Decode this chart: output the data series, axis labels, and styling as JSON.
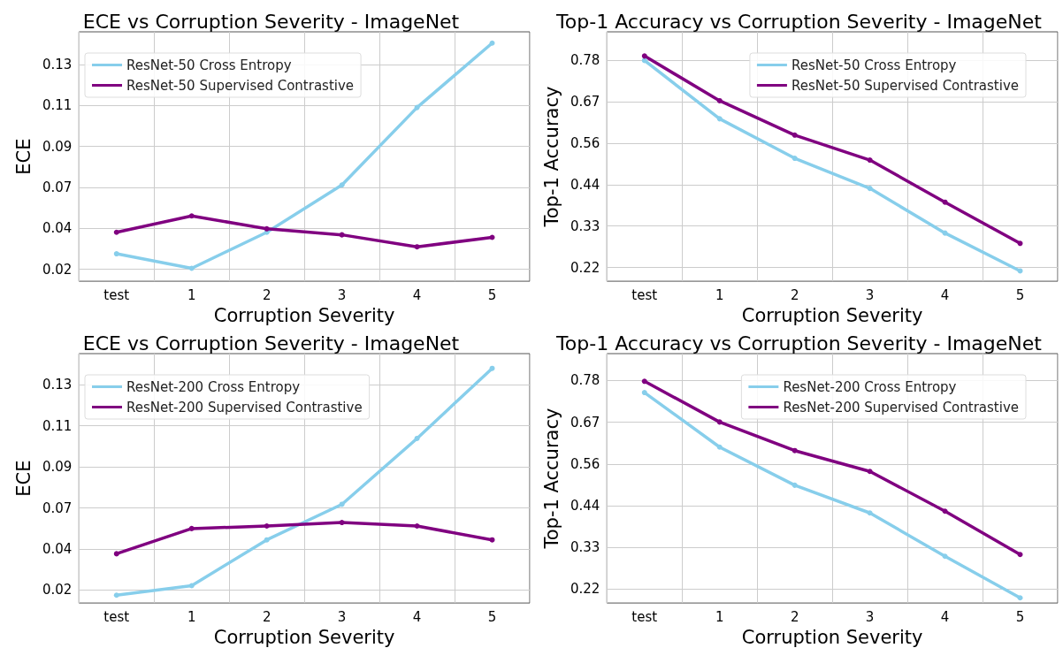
{
  "chart_data": [
    {
      "type": "line",
      "title": "ECE vs Corruption Severity - ImageNet",
      "xlabel": "Corruption Severity",
      "ylabel": "ECE",
      "categories": [
        "test",
        "1",
        "2",
        "3",
        "4",
        "5"
      ],
      "ylim": [
        0.0134,
        0.1505
      ],
      "yticks": [
        {
          "value": 0.02,
          "label": "0.02"
        },
        {
          "value": 0.0425,
          "label": "0.04"
        },
        {
          "value": 0.065,
          "label": "0.07"
        },
        {
          "value": 0.0875,
          "label": "0.09"
        },
        {
          "value": 0.11,
          "label": "0.11"
        },
        {
          "value": 0.1325,
          "label": "0.13"
        }
      ],
      "grid": true,
      "legend": "top left",
      "marker": "circle",
      "line_style": "solid",
      "series": [
        {
          "name": "ResNet-50 Cross Entropy",
          "color": "#87ceeb",
          "values": [
            0.0285,
            0.0205,
            0.0403,
            0.0663,
            0.1089,
            0.1443
          ]
        },
        {
          "name": "ResNet-50 Supervised Contrastive",
          "color": "#800080",
          "values": [
            0.0403,
            0.0493,
            0.0422,
            0.0389,
            0.0323,
            0.0375
          ]
        }
      ]
    },
    {
      "type": "line",
      "title": "Top-1 Accuracy vs Corruption Severity - ImageNet",
      "xlabel": "Corruption Severity",
      "ylabel": "Top-1 Accuracy",
      "categories": [
        "test",
        "1",
        "2",
        "3",
        "4",
        "5"
      ],
      "ylim": [
        0.183,
        0.855
      ],
      "yticks": [
        {
          "value": 0.22,
          "label": "0.22"
        },
        {
          "value": 0.3317,
          "label": "0.33"
        },
        {
          "value": 0.4433,
          "label": "0.44"
        },
        {
          "value": 0.555,
          "label": "0.56"
        },
        {
          "value": 0.6667,
          "label": "0.67"
        },
        {
          "value": 0.7783,
          "label": "0.78"
        }
      ],
      "grid": true,
      "legend": "top right",
      "marker": "circle",
      "line_style": "solid",
      "series": [
        {
          "name": "ResNet-50 Cross Entropy",
          "color": "#87ceeb",
          "values": [
            0.7777,
            0.6207,
            0.5142,
            0.4331,
            0.3127,
            0.2107
          ]
        },
        {
          "name": "ResNet-50 Supervised Contrastive",
          "color": "#800080",
          "values": [
            0.7898,
            0.6693,
            0.5767,
            0.5095,
            0.396,
            0.2849
          ]
        }
      ]
    },
    {
      "type": "line",
      "title": "ECE vs Corruption Severity - ImageNet",
      "xlabel": "Corruption Severity",
      "ylabel": "ECE",
      "categories": [
        "test",
        "1",
        "2",
        "3",
        "4",
        "5"
      ],
      "ylim": [
        0.0129,
        0.1496
      ],
      "yticks": [
        {
          "value": 0.02,
          "label": "0.02"
        },
        {
          "value": 0.0425,
          "label": "0.04"
        },
        {
          "value": 0.065,
          "label": "0.07"
        },
        {
          "value": 0.0875,
          "label": "0.09"
        },
        {
          "value": 0.11,
          "label": "0.11"
        },
        {
          "value": 0.1325,
          "label": "0.13"
        }
      ],
      "grid": true,
      "legend": "top left",
      "marker": "circle",
      "line_style": "solid",
      "series": [
        {
          "name": "ResNet-200 Cross Entropy",
          "color": "#87ceeb",
          "values": [
            0.0172,
            0.0224,
            0.0475,
            0.067,
            0.1031,
            0.1415
          ]
        },
        {
          "name": "ResNet-200 Supervised Contrastive",
          "color": "#800080",
          "values": [
            0.0399,
            0.0537,
            0.0551,
            0.057,
            0.0551,
            0.0475
          ]
        }
      ]
    },
    {
      "type": "line",
      "title": "Top-1 Accuracy vs Corruption Severity - ImageNet",
      "xlabel": "Corruption Severity",
      "ylabel": "Top-1 Accuracy",
      "categories": [
        "test",
        "1",
        "2",
        "3",
        "4",
        "5"
      ],
      "ylim": [
        0.183,
        0.85
      ],
      "yticks": [
        {
          "value": 0.22,
          "label": "0.22"
        },
        {
          "value": 0.3317,
          "label": "0.33"
        },
        {
          "value": 0.4433,
          "label": "0.44"
        },
        {
          "value": 0.555,
          "label": "0.56"
        },
        {
          "value": 0.6667,
          "label": "0.67"
        },
        {
          "value": 0.7783,
          "label": "0.78"
        }
      ],
      "grid": true,
      "legend": "top right",
      "marker": "circle",
      "line_style": "solid",
      "series": [
        {
          "name": "ResNet-200 Cross Entropy",
          "color": "#87ceeb",
          "values": [
            0.7458,
            0.5999,
            0.498,
            0.4238,
            0.308,
            0.1968
          ]
        },
        {
          "name": "ResNet-200 Supervised Contrastive",
          "color": "#800080",
          "values": [
            0.776,
            0.667,
            0.5906,
            0.535,
            0.4285,
            0.3127
          ]
        }
      ]
    }
  ]
}
